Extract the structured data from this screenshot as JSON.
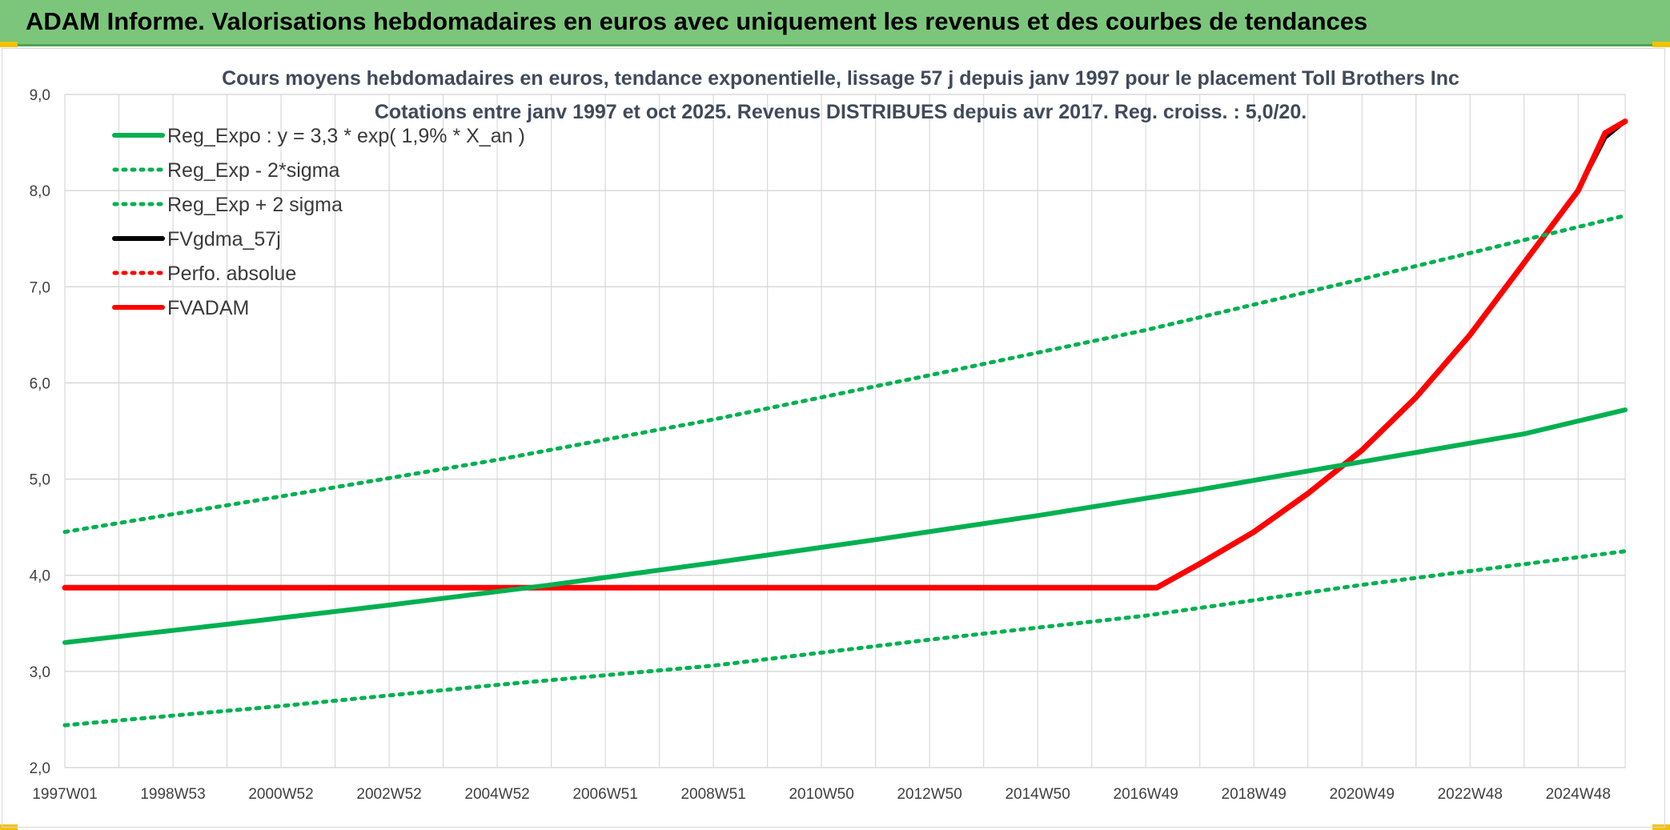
{
  "header": {
    "title": "ADAM Informe. Valorisations hebdomadaires en euros avec uniquement les revenus et des courbes de tendances"
  },
  "colors": {
    "banner": "#7bc67b",
    "green": "#00b050",
    "red": "#ff0000",
    "black": "#000000",
    "grid": "#d9d9d9"
  },
  "chart_data": {
    "type": "line",
    "title": "Cours moyens hebdomadaires en euros, tendance exponentielle, lissage 57 j depuis janv 1997 pour le placement Toll Brothers Inc",
    "subtitle": "Cotations entre janv 1997 et oct 2025. Revenus DISTRIBUES depuis avr 2017. Reg. croiss. : 5,0/20.",
    "xlabel": "",
    "ylabel": "",
    "ylim": [
      2.0,
      9.0
    ],
    "y_ticks": [
      "2,0",
      "3,0",
      "4,0",
      "5,0",
      "6,0",
      "7,0",
      "8,0",
      "9,0"
    ],
    "x_ticks": [
      "1997W01",
      "1998W53",
      "2000W52",
      "2002W52",
      "2004W52",
      "2006W51",
      "2008W51",
      "2010W50",
      "2012W50",
      "2014W50",
      "2016W49",
      "2018W49",
      "2020W49",
      "2022W48",
      "2024W48"
    ],
    "x_years": [
      1997.0,
      1999.0,
      2001.0,
      2003.0,
      2005.0,
      2007.0,
      2009.0,
      2011.0,
      2013.0,
      2015.0,
      2017.0,
      2019.0,
      2021.0,
      2023.0,
      2025.0
    ],
    "xlim": [
      1997.0,
      2025.87
    ],
    "grid": true,
    "legend_position": "top-left",
    "series": [
      {
        "name": "Reg_Expo : y = 3,3 * exp( 1,9% *  X_an )",
        "color": "#00b050",
        "style": "solid",
        "x": [
          1997.0,
          2000.0,
          2003.0,
          2006.0,
          2009.0,
          2012.0,
          2015.0,
          2018.0,
          2021.0,
          2024.0,
          2025.87
        ],
        "values": [
          3.3,
          3.49,
          3.69,
          3.9,
          4.13,
          4.37,
          4.62,
          4.89,
          5.18,
          5.47,
          5.72
        ]
      },
      {
        "name": "Reg_Exp - 2*sigma",
        "color": "#00b050",
        "style": "dotted",
        "x": [
          1997.0,
          2001.0,
          2005.0,
          2009.0,
          2013.0,
          2017.0,
          2021.0,
          2025.87
        ],
        "values": [
          2.44,
          2.64,
          2.86,
          3.06,
          3.33,
          3.58,
          3.9,
          4.25
        ]
      },
      {
        "name": "Reg_Exp + 2 sigma",
        "color": "#00b050",
        "style": "dotted",
        "x": [
          1997.0,
          2001.0,
          2005.0,
          2009.0,
          2013.0,
          2017.0,
          2021.0,
          2025.87
        ],
        "values": [
          4.45,
          4.82,
          5.2,
          5.62,
          6.08,
          6.55,
          7.08,
          7.74
        ]
      },
      {
        "name": "FVgdma_57j",
        "color": "#000000",
        "style": "solid",
        "x": [
          1997.0,
          2017.2,
          2018.0,
          2019.0,
          2020.0,
          2021.0,
          2022.0,
          2023.0,
          2024.0,
          2025.0,
          2025.5,
          2025.87
        ],
        "values": [
          3.87,
          3.87,
          4.12,
          4.45,
          4.85,
          5.3,
          5.85,
          6.5,
          7.25,
          8.0,
          8.55,
          8.72
        ]
      },
      {
        "name": "Perfo. absolue",
        "color": "#ff0000",
        "style": "dotted",
        "x": [],
        "values": []
      },
      {
        "name": "FVADAM",
        "color": "#ff0000",
        "style": "solid",
        "x": [
          1997.0,
          2017.2,
          2018.0,
          2019.0,
          2020.0,
          2021.0,
          2022.0,
          2023.0,
          2024.0,
          2025.0,
          2025.5,
          2025.87
        ],
        "values": [
          3.87,
          3.87,
          4.12,
          4.45,
          4.85,
          5.3,
          5.85,
          6.5,
          7.25,
          8.0,
          8.6,
          8.72
        ]
      }
    ]
  }
}
